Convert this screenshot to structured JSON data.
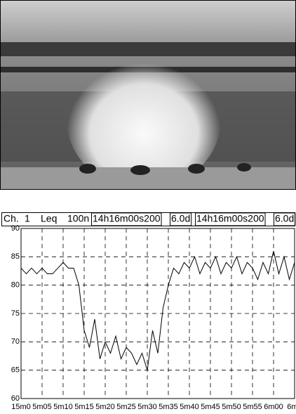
{
  "chart_data": {
    "type": "line",
    "header": [
      "Ch.",
      "1",
      "Leq",
      "100n",
      "14h16m00s200",
      "6.0d",
      "14h16m00s200",
      "6.0d"
    ],
    "x": [
      0,
      0.25,
      0.5,
      0.75,
      1,
      1.25,
      1.5,
      1.75,
      2,
      2.25,
      2.5,
      2.75,
      3,
      3.25,
      3.5,
      3.75,
      4,
      4.25,
      4.5,
      4.75,
      5,
      5.25,
      5.5,
      5.75,
      6,
      6.25,
      6.5,
      6.75,
      7,
      7.25,
      7.5,
      7.75,
      8,
      8.25,
      8.5,
      8.75,
      9,
      9.25,
      9.5,
      9.75,
      10,
      10.25,
      10.5,
      10.75,
      11,
      11.25,
      11.5,
      11.75,
      12,
      12.25,
      12.5,
      12.75,
      13
    ],
    "values": [
      83,
      82,
      83,
      82,
      83,
      82,
      82,
      83,
      84,
      83,
      83,
      80,
      72,
      69,
      74,
      67,
      70,
      68,
      71,
      67,
      69,
      68,
      66,
      68,
      65,
      72,
      68,
      76,
      80,
      83,
      82,
      84,
      83,
      85,
      82,
      84,
      83,
      85,
      82,
      84,
      83,
      85,
      82,
      84,
      83,
      81,
      84,
      82,
      86,
      82,
      85,
      81,
      84
    ],
    "color": "#000000",
    "xlim": [
      0,
      13
    ],
    "xticks": [
      {
        "value": 0,
        "label": "15m0"
      },
      {
        "value": 1,
        "label": "5m05"
      },
      {
        "value": 2,
        "label": "5m10"
      },
      {
        "value": 3,
        "label": "5m15"
      },
      {
        "value": 4,
        "label": "5m20"
      },
      {
        "value": 5,
        "label": "5m25"
      },
      {
        "value": 6,
        "label": "5m30"
      },
      {
        "value": 7,
        "label": "5m35"
      },
      {
        "value": 8,
        "label": "5m40"
      },
      {
        "value": 9,
        "label": "5m45"
      },
      {
        "value": 10,
        "label": "5m50"
      },
      {
        "value": 11,
        "label": "5m55"
      },
      {
        "value": 12,
        "label": "6m00"
      },
      {
        "value": 13,
        "label": "6m0"
      }
    ],
    "ylim": [
      60,
      90
    ],
    "yticks": [
      60,
      65,
      70,
      75,
      80,
      85,
      90
    ],
    "grid": true
  }
}
